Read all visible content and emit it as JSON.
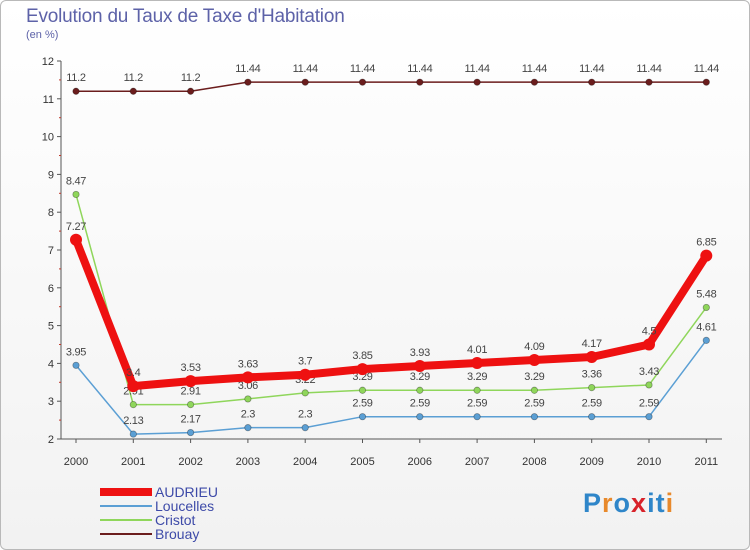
{
  "header": {
    "title": "Evolution du Taux de Taxe d'Habitation",
    "subtitle": "(en %)"
  },
  "logo": {
    "text": "Proxiti",
    "letters": [
      "P",
      "r",
      "o",
      "x",
      "i",
      "t",
      "i"
    ],
    "colors": [
      "#2f86c9",
      "#e8892b",
      "#2f86c9",
      "#d8222a",
      "#2f86c9",
      "#2f86c9",
      "#e8892b"
    ]
  },
  "chart_data": {
    "type": "line",
    "categories": [
      "2000",
      "2001",
      "2002",
      "2003",
      "2004",
      "2005",
      "2006",
      "2007",
      "2008",
      "2009",
      "2010",
      "2011"
    ],
    "ylim": [
      2,
      12
    ],
    "yticks": [
      "2",
      "3",
      "4",
      "5",
      "6",
      "7",
      "8",
      "9",
      "10",
      "11",
      "12"
    ],
    "grid": false,
    "legend_position": "bottom-left",
    "series": [
      {
        "name": "Brouay",
        "color": "#6b1d1d",
        "values": [
          11.2,
          11.2,
          11.2,
          11.44,
          11.44,
          11.44,
          11.44,
          11.44,
          11.44,
          11.44,
          11.44,
          11.44
        ],
        "labels": [
          "11.2",
          "11.2",
          "11.2",
          "11.44",
          "11.44",
          "11.44",
          "11.44",
          "11.44",
          "11.44",
          "11.44",
          "11.44",
          "11.44"
        ]
      },
      {
        "name": "Cristot",
        "color": "#8fd65b",
        "values": [
          8.47,
          2.91,
          2.91,
          3.06,
          3.22,
          3.29,
          3.29,
          3.29,
          3.29,
          3.36,
          3.43,
          5.48
        ],
        "labels": [
          "8.47",
          "2.91",
          "2.91",
          "3.06",
          "3.22",
          "3.29",
          "3.29",
          "3.29",
          "3.29",
          "3.36",
          "3.43",
          "5.48"
        ]
      },
      {
        "name": "Loucelles",
        "color": "#5b9fd4",
        "values": [
          3.95,
          2.13,
          2.17,
          2.3,
          2.3,
          2.59,
          2.59,
          2.59,
          2.59,
          2.59,
          2.59,
          4.61
        ],
        "labels": [
          "3.95",
          "2.13",
          "2.17",
          "2.3",
          "2.3",
          "2.59",
          "2.59",
          "2.59",
          "2.59",
          "2.59",
          "2.59",
          "4.61"
        ]
      },
      {
        "name": "AUDRIEU",
        "color": "#ee1111",
        "values": [
          7.27,
          3.4,
          3.53,
          3.63,
          3.7,
          3.85,
          3.93,
          4.01,
          4.09,
          4.17,
          4.5,
          6.85
        ],
        "labels": [
          "7.27",
          "3.4",
          "3.53",
          "3.63",
          "3.7",
          "3.85",
          "3.93",
          "4.01",
          "4.09",
          "4.17",
          "4.5",
          "6.85"
        ]
      }
    ]
  }
}
